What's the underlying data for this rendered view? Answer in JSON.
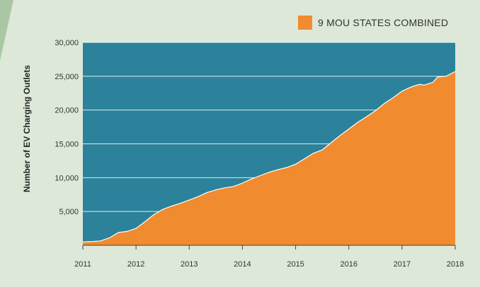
{
  "colors": {
    "plot_bg": "#2b829a",
    "area": "#f08b30",
    "gridline": "#ffffff",
    "accent_corner": "#a9c7a5"
  },
  "chart_data": {
    "type": "area",
    "title": "",
    "xlabel": "",
    "ylabel": "Number of EV Charging Outlets",
    "xlim": [
      2011,
      2018
    ],
    "ylim": [
      0,
      30000
    ],
    "x_ticks": [
      "2011",
      "2012",
      "2013",
      "2014",
      "2015",
      "2016",
      "2017",
      "2018"
    ],
    "y_ticks": [
      "5,000",
      "10,000",
      "15,000",
      "20,000",
      "25,000",
      "30,000"
    ],
    "y_tick_values": [
      5000,
      10000,
      15000,
      20000,
      25000,
      30000
    ],
    "grid": true,
    "legend": {
      "position": "top-right"
    },
    "series": [
      {
        "name": "9 MOU STATES COMBINED",
        "x": [
          2011.0,
          2011.17,
          2011.33,
          2011.5,
          2011.67,
          2011.83,
          2012.0,
          2012.17,
          2012.33,
          2012.5,
          2012.67,
          2012.83,
          2013.0,
          2013.17,
          2013.33,
          2013.5,
          2013.67,
          2013.83,
          2014.0,
          2014.17,
          2014.33,
          2014.5,
          2014.67,
          2014.83,
          2015.0,
          2015.17,
          2015.33,
          2015.5,
          2015.67,
          2015.83,
          2016.0,
          2016.17,
          2016.33,
          2016.5,
          2016.67,
          2016.83,
          2017.0,
          2017.17,
          2017.33,
          2017.42,
          2017.58,
          2017.67,
          2017.83,
          2018.0
        ],
        "values": [
          500,
          550,
          650,
          1100,
          1900,
          2050,
          2500,
          3500,
          4500,
          5300,
          5800,
          6200,
          6700,
          7200,
          7800,
          8200,
          8500,
          8700,
          9200,
          9800,
          10300,
          10800,
          11200,
          11500,
          12000,
          12800,
          13600,
          14100,
          15200,
          16200,
          17200,
          18200,
          19000,
          19900,
          21000,
          21800,
          22800,
          23400,
          23800,
          23700,
          24100,
          24900,
          25000,
          25700
        ]
      }
    ]
  }
}
